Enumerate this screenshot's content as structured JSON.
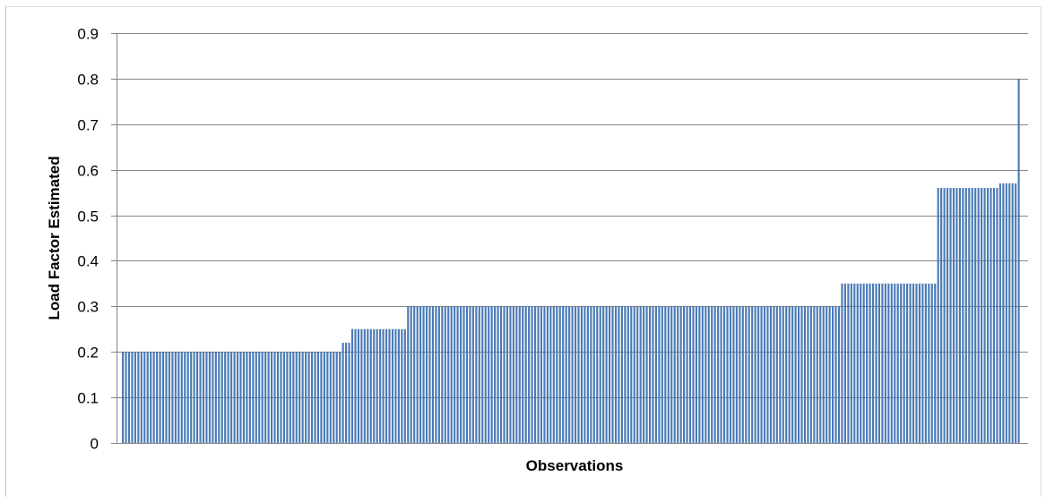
{
  "chart_data": {
    "type": "bar",
    "title": "",
    "xlabel": "Observations",
    "ylabel": "Load Factor Estimated",
    "ylim": [
      0,
      0.9
    ],
    "yticks": [
      "0",
      "0.1",
      "0.2",
      "0.3",
      "0.4",
      "0.5",
      "0.6",
      "0.7",
      "0.8",
      "0.9"
    ],
    "grid": true,
    "legend": "none",
    "bar_color": "#4a7ab5",
    "gridline_color": "#868686",
    "series": [
      {
        "values": [
          0.2,
          0.2,
          0.2,
          0.2,
          0.2,
          0.2,
          0.2,
          0.2,
          0.2,
          0.2,
          0.2,
          0.2,
          0.2,
          0.2,
          0.2,
          0.2,
          0.2,
          0.2,
          0.2,
          0.2,
          0.2,
          0.2,
          0.2,
          0.2,
          0.2,
          0.2,
          0.2,
          0.2,
          0.2,
          0.2,
          0.2,
          0.2,
          0.2,
          0.2,
          0.2,
          0.2,
          0.2,
          0.2,
          0.2,
          0.2,
          0.2,
          0.2,
          0.2,
          0.2,
          0.2,
          0.2,
          0.2,
          0.2,
          0.2,
          0.2,
          0.2,
          0.2,
          0.2,
          0.2,
          0.2,
          0.2,
          0.2,
          0.2,
          0.2,
          0.2,
          0.2,
          0.2,
          0.2,
          0.2,
          0.2,
          0.2,
          0.2,
          0.2,
          0.2,
          0.2,
          0.2,
          0.22,
          0.22,
          0.22,
          0.25,
          0.25,
          0.25,
          0.25,
          0.25,
          0.25,
          0.25,
          0.25,
          0.25,
          0.25,
          0.25,
          0.25,
          0.25,
          0.25,
          0.25,
          0.25,
          0.25,
          0.25,
          0.3,
          0.3,
          0.3,
          0.3,
          0.3,
          0.3,
          0.3,
          0.3,
          0.3,
          0.3,
          0.3,
          0.3,
          0.3,
          0.3,
          0.3,
          0.3,
          0.3,
          0.3,
          0.3,
          0.3,
          0.3,
          0.3,
          0.3,
          0.3,
          0.3,
          0.3,
          0.3,
          0.3,
          0.3,
          0.3,
          0.3,
          0.3,
          0.3,
          0.3,
          0.3,
          0.3,
          0.3,
          0.3,
          0.3,
          0.3,
          0.3,
          0.3,
          0.3,
          0.3,
          0.3,
          0.3,
          0.3,
          0.3,
          0.3,
          0.3,
          0.3,
          0.3,
          0.3,
          0.3,
          0.3,
          0.3,
          0.3,
          0.3,
          0.3,
          0.3,
          0.3,
          0.3,
          0.3,
          0.3,
          0.3,
          0.3,
          0.3,
          0.3,
          0.3,
          0.3,
          0.3,
          0.3,
          0.3,
          0.3,
          0.3,
          0.3,
          0.3,
          0.3,
          0.3,
          0.3,
          0.3,
          0.3,
          0.3,
          0.3,
          0.3,
          0.3,
          0.3,
          0.3,
          0.3,
          0.3,
          0.3,
          0.3,
          0.3,
          0.3,
          0.3,
          0.3,
          0.3,
          0.3,
          0.3,
          0.3,
          0.3,
          0.3,
          0.3,
          0.3,
          0.3,
          0.3,
          0.3,
          0.3,
          0.3,
          0.3,
          0.3,
          0.3,
          0.3,
          0.3,
          0.3,
          0.3,
          0.3,
          0.3,
          0.3,
          0.3,
          0.3,
          0.3,
          0.3,
          0.3,
          0.3,
          0.3,
          0.3,
          0.3,
          0.3,
          0.3,
          0.3,
          0.3,
          0.3,
          0.3,
          0.3,
          0.3,
          0.3,
          0.3,
          0.3,
          0.3,
          0.35,
          0.35,
          0.35,
          0.35,
          0.35,
          0.35,
          0.35,
          0.35,
          0.35,
          0.35,
          0.35,
          0.35,
          0.35,
          0.35,
          0.35,
          0.35,
          0.35,
          0.35,
          0.35,
          0.35,
          0.35,
          0.35,
          0.35,
          0.35,
          0.35,
          0.35,
          0.35,
          0.35,
          0.35,
          0.35,
          0.35,
          0.56,
          0.56,
          0.56,
          0.56,
          0.56,
          0.56,
          0.56,
          0.56,
          0.56,
          0.56,
          0.56,
          0.56,
          0.56,
          0.56,
          0.56,
          0.56,
          0.56,
          0.56,
          0.56,
          0.56,
          0.57,
          0.57,
          0.57,
          0.57,
          0.57,
          0.57,
          0.8
        ]
      }
    ]
  }
}
